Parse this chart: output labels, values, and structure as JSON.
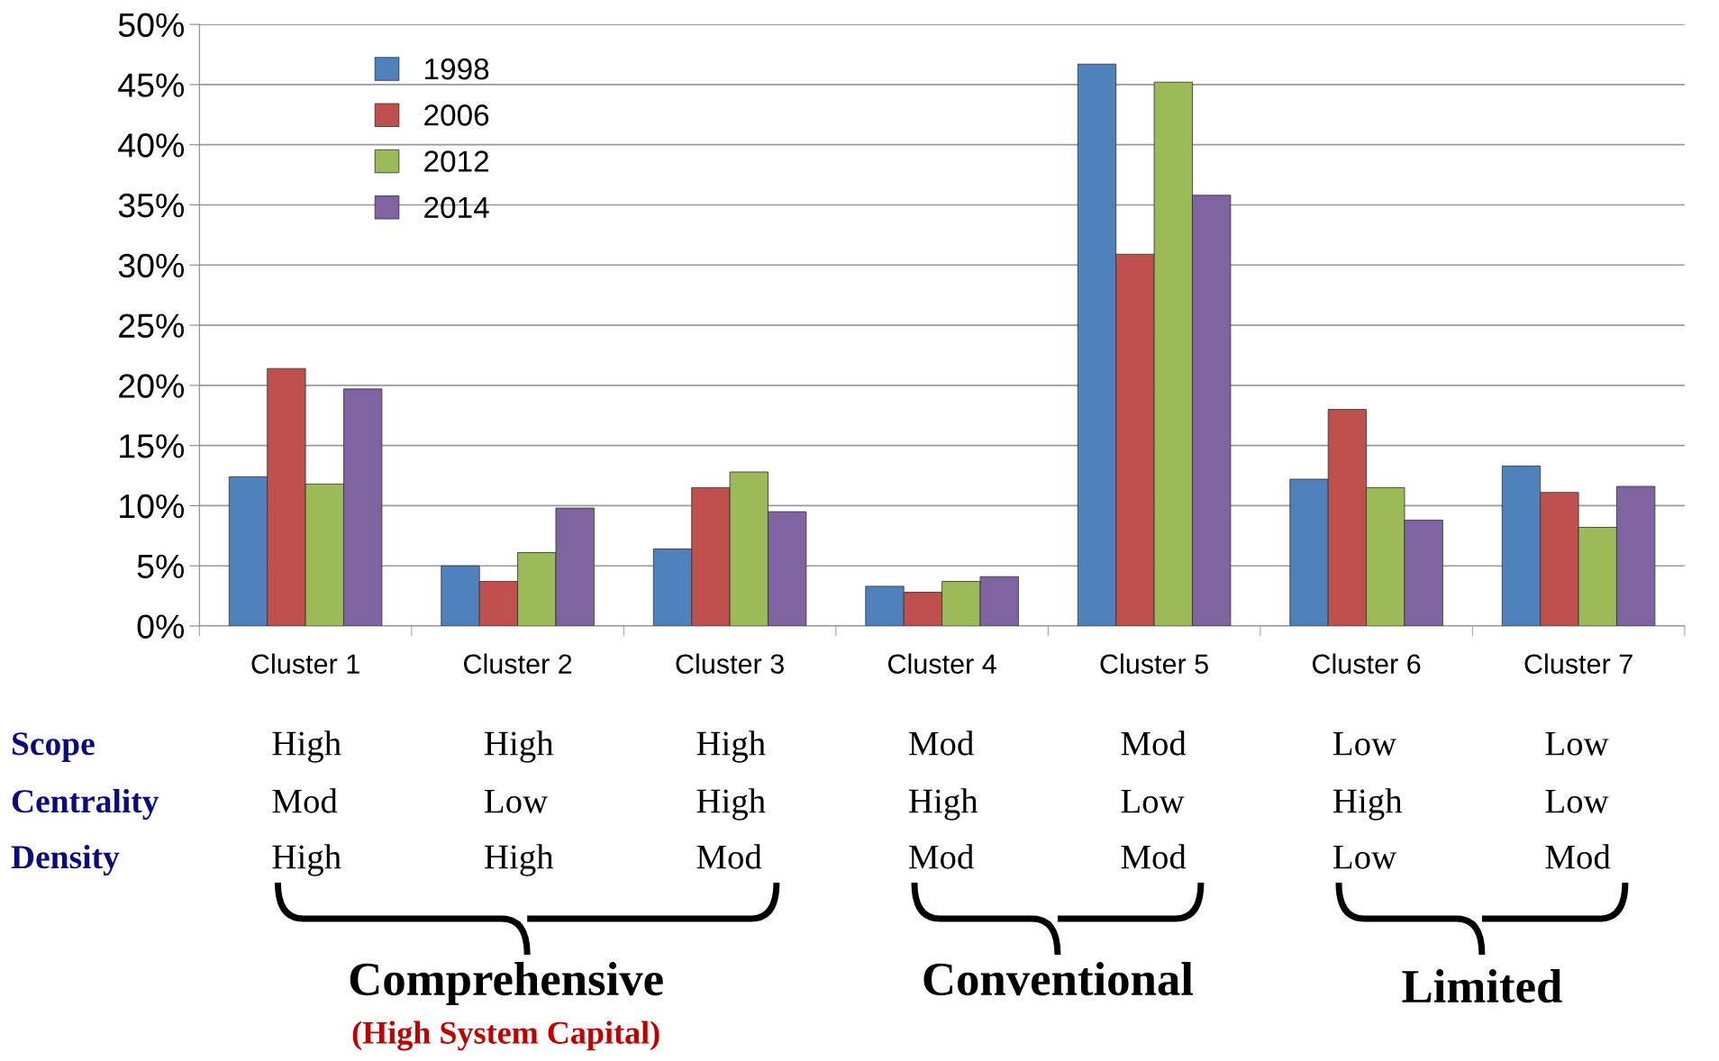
{
  "chart_data": {
    "type": "bar",
    "categories": [
      "Cluster 1",
      "Cluster 2",
      "Cluster 3",
      "Cluster 4",
      "Cluster 5",
      "Cluster 6",
      "Cluster 7"
    ],
    "series": [
      {
        "name": "1998",
        "color": "#4f81bd",
        "values": [
          12.4,
          5.0,
          6.4,
          3.3,
          46.7,
          12.2,
          13.3
        ]
      },
      {
        "name": "2006",
        "color": "#c0504d",
        "values": [
          21.4,
          3.7,
          11.5,
          2.8,
          30.9,
          18.0,
          11.1
        ]
      },
      {
        "name": "2012",
        "color": "#9bbb59",
        "values": [
          11.8,
          6.1,
          12.8,
          3.7,
          45.2,
          11.5,
          8.2
        ]
      },
      {
        "name": "2014",
        "color": "#8064a2",
        "values": [
          19.7,
          9.8,
          9.5,
          4.1,
          35.8,
          8.8,
          11.6
        ]
      }
    ],
    "ylim": [
      0,
      50
    ],
    "yticks": [
      {
        "value": 0,
        "label": "0%"
      },
      {
        "value": 5,
        "label": "5%"
      },
      {
        "value": 10,
        "label": "10%"
      },
      {
        "value": 15,
        "label": "15%"
      },
      {
        "value": 20,
        "label": "20%"
      },
      {
        "value": 25,
        "label": "25%"
      },
      {
        "value": 30,
        "label": "30%"
      },
      {
        "value": 35,
        "label": "35%"
      },
      {
        "value": 40,
        "label": "40%"
      },
      {
        "value": 45,
        "label": "45%"
      },
      {
        "value": 50,
        "label": "50%"
      }
    ],
    "grid": "y",
    "legend": "top left",
    "annotations": [
      "Scope",
      "Centrality",
      "Density",
      "High",
      "High",
      "High",
      "Mod",
      "Mod",
      "Low",
      "Low",
      "Mod",
      "Low",
      "High",
      "High",
      "Low",
      "High",
      "Low",
      "High",
      "High",
      "Mod",
      "Mod",
      "Mod",
      "Low",
      "Mod",
      "Comprehensive",
      "(High System Capital)",
      "Conventional",
      "Limited"
    ]
  }
}
